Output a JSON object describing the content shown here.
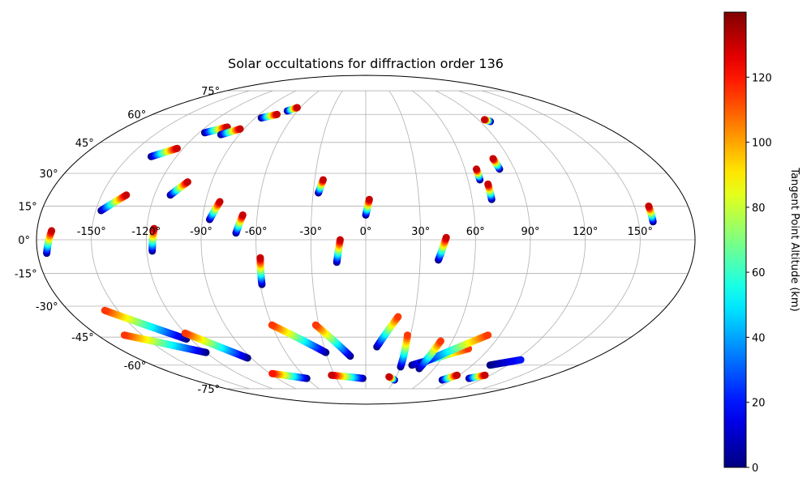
{
  "chart_data": {
    "type": "scatter",
    "title": "Solar occultations for diffraction order 136",
    "projection": "mollweide",
    "grid": true,
    "lon_ticks": [
      -150,
      -120,
      -90,
      -60,
      -30,
      0,
      30,
      60,
      90,
      120,
      150
    ],
    "lat_ticks": [
      75,
      60,
      45,
      30,
      15,
      0,
      -15,
      -30,
      -45,
      -60,
      -75
    ],
    "lon_tick_labels": [
      "-150°",
      "-120°",
      "-90°",
      "-60°",
      "-30°",
      "0°",
      "30°",
      "60°",
      "90°",
      "120°",
      "150°"
    ],
    "lat_tick_labels": [
      "75°",
      "60°",
      "45°",
      "30°",
      "15°",
      "0°",
      "-15°",
      "-30°",
      "-45°",
      "-60°",
      "-75°"
    ],
    "colorbar": {
      "label": "Tangent Point Altitude (km)",
      "colormap": "jet",
      "range": [
        0,
        140
      ],
      "ticks": [
        0,
        20,
        40,
        60,
        80,
        100,
        120
      ],
      "tick_labels": [
        "0",
        "20",
        "40",
        "60",
        "80",
        "100",
        "120"
      ]
    },
    "tracks": [
      {
        "start": [
          -175,
          -6
        ],
        "end": [
          -172,
          4
        ],
        "alt_start": 0,
        "alt_end": 130
      },
      {
        "start": [
          -147,
          13
        ],
        "end": [
          -136,
          20
        ],
        "alt_start": 0,
        "alt_end": 130
      },
      {
        "start": [
          -136,
          38
        ],
        "end": [
          -124,
          42
        ],
        "alt_start": 0,
        "alt_end": 130
      },
      {
        "start": [
          -116,
          50
        ],
        "end": [
          -104,
          53
        ],
        "alt_start": 0,
        "alt_end": 130
      },
      {
        "start": [
          -103,
          49
        ],
        "end": [
          -93,
          52
        ],
        "alt_start": 0,
        "alt_end": 130
      },
      {
        "start": [
          -85,
          58
        ],
        "end": [
          -75,
          60
        ],
        "alt_start": 0,
        "alt_end": 130
      },
      {
        "start": [
          -69,
          62
        ],
        "end": [
          -63,
          64
        ],
        "alt_start": 0,
        "alt_end": 130
      },
      {
        "start": [
          -111,
          20
        ],
        "end": [
          -104,
          26
        ],
        "alt_start": 0,
        "alt_end": 130
      },
      {
        "start": [
          -86,
          9
        ],
        "end": [
          -82,
          17
        ],
        "alt_start": 0,
        "alt_end": 130
      },
      {
        "start": [
          -71,
          3
        ],
        "end": [
          -68,
          11
        ],
        "alt_start": 0,
        "alt_end": 130
      },
      {
        "start": [
          -117,
          -5
        ],
        "end": [
          -116,
          5
        ],
        "alt_start": 0,
        "alt_end": 130
      },
      {
        "start": [
          -59,
          -20
        ],
        "end": [
          -58,
          -8
        ],
        "alt_start": 0,
        "alt_end": 130
      },
      {
        "start": [
          -27,
          21
        ],
        "end": [
          -25,
          27
        ],
        "alt_start": 0,
        "alt_end": 130
      },
      {
        "start": [
          0,
          11
        ],
        "end": [
          2,
          18
        ],
        "alt_start": 0,
        "alt_end": 130
      },
      {
        "start": [
          -16,
          -10
        ],
        "end": [
          -14,
          0
        ],
        "alt_start": 0,
        "alt_end": 130
      },
      {
        "start": [
          40,
          -9
        ],
        "end": [
          44,
          1
        ],
        "alt_start": 0,
        "alt_end": 130
      },
      {
        "start": [
          67,
          27
        ],
        "end": [
          67,
          32
        ],
        "alt_start": 0,
        "alt_end": 130
      },
      {
        "start": [
          71,
          18
        ],
        "end": [
          71,
          25
        ],
        "alt_start": 0,
        "alt_end": 130
      },
      {
        "start": [
          81,
          32
        ],
        "end": [
          80,
          37
        ],
        "alt_start": 0,
        "alt_end": 130
      },
      {
        "start": [
          98,
          56
        ],
        "end": [
          95,
          57
        ],
        "alt_start": 0,
        "alt_end": 130
      },
      {
        "start": [
          158,
          8
        ],
        "end": [
          158,
          15
        ],
        "alt_start": 0,
        "alt_end": 130
      },
      {
        "start": [
          -123,
          -46
        ],
        "end": [
          -158,
          -32
        ],
        "alt_start": 0,
        "alt_end": 115
      },
      {
        "start": [
          -120,
          -53
        ],
        "end": [
          -162,
          -44
        ],
        "alt_start": 0,
        "alt_end": 115
      },
      {
        "start": [
          -93,
          -56
        ],
        "end": [
          -120,
          -43
        ],
        "alt_start": 0,
        "alt_end": 115
      },
      {
        "start": [
          -30,
          -53
        ],
        "end": [
          -60,
          -39
        ],
        "alt_start": 0,
        "alt_end": 115
      },
      {
        "start": [
          -12,
          -55
        ],
        "end": [
          -32,
          -39
        ],
        "alt_start": 0,
        "alt_end": 115
      },
      {
        "start": [
          8,
          -50
        ],
        "end": [
          20,
          -35
        ],
        "alt_start": 0,
        "alt_end": 115
      },
      {
        "start": [
          30,
          -61
        ],
        "end": [
          28,
          -44
        ],
        "alt_start": 0,
        "alt_end": 115
      },
      {
        "start": [
          39,
          -60
        ],
        "end": [
          75,
          -51
        ],
        "alt_start": 0,
        "alt_end": 115
      },
      {
        "start": [
          46,
          -59
        ],
        "end": [
          82,
          -44
        ],
        "alt_start": 0,
        "alt_end": 115
      },
      {
        "start": [
          47,
          -62
        ],
        "end": [
          52,
          -47
        ],
        "alt_start": 0,
        "alt_end": 115
      },
      {
        "start": [
          105,
          -60
        ],
        "end": [
          124,
          -57
        ],
        "alt_start": 0,
        "alt_end": 20
      },
      {
        "start": [
          -60,
          -68
        ],
        "end": [
          -88,
          -65
        ],
        "alt_start": 0,
        "alt_end": 120
      },
      {
        "start": [
          -3,
          -68
        ],
        "end": [
          -33,
          -66
        ],
        "alt_start": 0,
        "alt_end": 130
      },
      {
        "start": [
          30,
          -69
        ],
        "end": [
          23,
          -67
        ],
        "alt_start": 0,
        "alt_end": 130
      },
      {
        "start": [
          80,
          -69
        ],
        "end": [
          88,
          -66
        ],
        "alt_start": 0,
        "alt_end": 130
      },
      {
        "start": [
          105,
          -68
        ],
        "end": [
          115,
          -66
        ],
        "alt_start": 0,
        "alt_end": 130
      }
    ]
  }
}
